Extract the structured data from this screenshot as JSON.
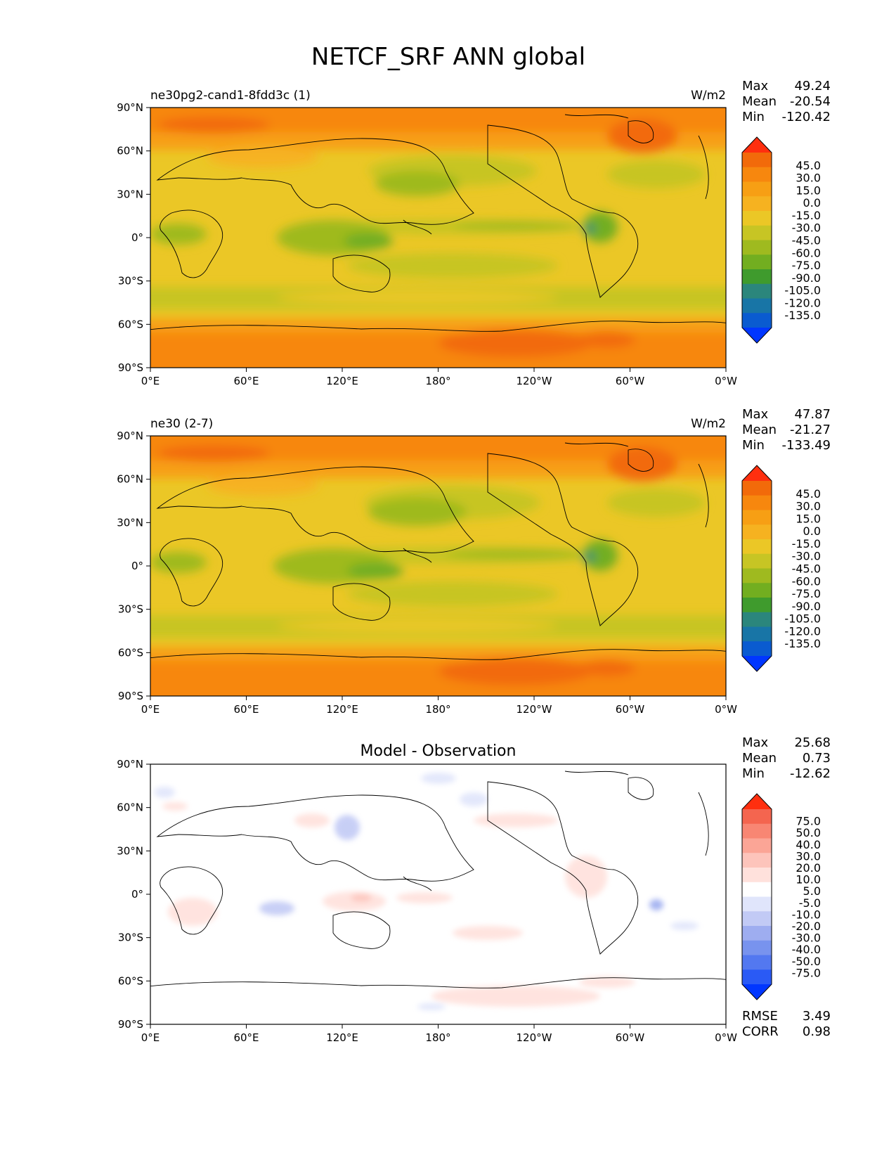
{
  "title": "NETCF_SRF ANN global",
  "x_ticks": [
    "0°E",
    "60°E",
    "120°E",
    "180°",
    "120°W",
    "60°W",
    "0°W"
  ],
  "y_ticks": [
    "90°N",
    "60°N",
    "30°N",
    "0°",
    "30°S",
    "60°S",
    "90°S"
  ],
  "stat_labels": {
    "max": "Max",
    "mean": "Mean",
    "min": "Min",
    "rmse": "RMSE",
    "corr": "CORR"
  },
  "colors": {
    "model_cmap": [
      "#0036ff",
      "#0a5bd0",
      "#1875a6",
      "#2b867c",
      "#3f9b2d",
      "#72ae20",
      "#9fba1f",
      "#c7c524",
      "#ebc726",
      "#f6b220",
      "#f79f14",
      "#f7870e",
      "#f26a0a",
      "#ff2f0f"
    ],
    "diff_cmap": [
      "#0036ff",
      "#2a5af5",
      "#5378f0",
      "#7893ee",
      "#9eadf0",
      "#c2caf5",
      "#e0e5fb",
      "#ffffff",
      "#ffe1dc",
      "#fdc4bb",
      "#fba596",
      "#f88673",
      "#f4654f",
      "#ff2f0f"
    ],
    "land_outline": "#000000"
  },
  "panels": [
    {
      "id": "test",
      "title_left": "ne30pg2-cand1-8fdd3c (1)",
      "title_right": "W/m2",
      "title_center": "",
      "max": "49.24",
      "mean": "-20.54",
      "min": "-120.42",
      "colorbar_levels": [
        "45.0",
        "30.0",
        "15.0",
        "0.0",
        "-15.0",
        "-30.0",
        "-45.0",
        "-60.0",
        "-75.0",
        "-90.0",
        "-105.0",
        "-120.0",
        "-135.0"
      ]
    },
    {
      "id": "reference",
      "title_left": "ne30 (2-7)",
      "title_right": "W/m2",
      "title_center": "",
      "max": "47.87",
      "mean": "-21.27",
      "min": "-133.49",
      "colorbar_levels": [
        "45.0",
        "30.0",
        "15.0",
        "0.0",
        "-15.0",
        "-30.0",
        "-45.0",
        "-60.0",
        "-75.0",
        "-90.0",
        "-105.0",
        "-120.0",
        "-135.0"
      ]
    },
    {
      "id": "difference",
      "title_left": "",
      "title_right": "",
      "title_center": "Model - Observation",
      "max": "25.68",
      "mean": "0.73",
      "min": "-12.62",
      "rmse": "3.49",
      "corr": "0.98",
      "colorbar_levels": [
        "75.0",
        "50.0",
        "40.0",
        "30.0",
        "20.0",
        "10.0",
        "5.0",
        "-5.0",
        "-10.0",
        "-20.0",
        "-30.0",
        "-40.0",
        "-50.0",
        "-75.0"
      ]
    }
  ],
  "chart_data": [
    {
      "type": "heatmap",
      "title": "ne30pg2-cand1-8fdd3c (1)",
      "units": "W/m2",
      "x_ticks": [
        "0°E",
        "60°E",
        "120°E",
        "180°",
        "120°W",
        "60°W",
        "0°W"
      ],
      "y_ticks": [
        "90°N",
        "60°N",
        "30°N",
        "0°",
        "30°S",
        "60°S",
        "90°S"
      ],
      "xlim": [
        0,
        360
      ],
      "ylim": [
        -90,
        90
      ],
      "levels": [
        -135,
        -120,
        -105,
        -90,
        -75,
        -60,
        -45,
        -30,
        -15,
        0,
        15,
        30,
        45
      ],
      "stats": {
        "max": 49.24,
        "mean": -20.54,
        "min": -120.42
      }
    },
    {
      "type": "heatmap",
      "title": "ne30 (2-7)",
      "units": "W/m2",
      "x_ticks": [
        "0°E",
        "60°E",
        "120°E",
        "180°",
        "120°W",
        "60°W",
        "0°W"
      ],
      "y_ticks": [
        "90°N",
        "60°N",
        "30°N",
        "0°",
        "30°S",
        "60°S",
        "90°S"
      ],
      "xlim": [
        0,
        360
      ],
      "ylim": [
        -90,
        90
      ],
      "levels": [
        -135,
        -120,
        -105,
        -90,
        -75,
        -60,
        -45,
        -30,
        -15,
        0,
        15,
        30,
        45
      ],
      "stats": {
        "max": 47.87,
        "mean": -21.27,
        "min": -133.49
      }
    },
    {
      "type": "heatmap",
      "title": "Model - Observation",
      "x_ticks": [
        "0°E",
        "60°E",
        "120°E",
        "180°",
        "120°W",
        "60°W",
        "0°W"
      ],
      "y_ticks": [
        "90°N",
        "60°N",
        "30°N",
        "0°",
        "30°S",
        "60°S",
        "90°S"
      ],
      "xlim": [
        0,
        360
      ],
      "ylim": [
        -90,
        90
      ],
      "levels": [
        -75,
        -50,
        -40,
        -30,
        -20,
        -10,
        -5,
        5,
        10,
        20,
        30,
        40,
        50,
        75
      ],
      "stats": {
        "max": 25.68,
        "mean": 0.73,
        "min": -12.62,
        "rmse": 3.49,
        "corr": 0.98
      }
    }
  ]
}
